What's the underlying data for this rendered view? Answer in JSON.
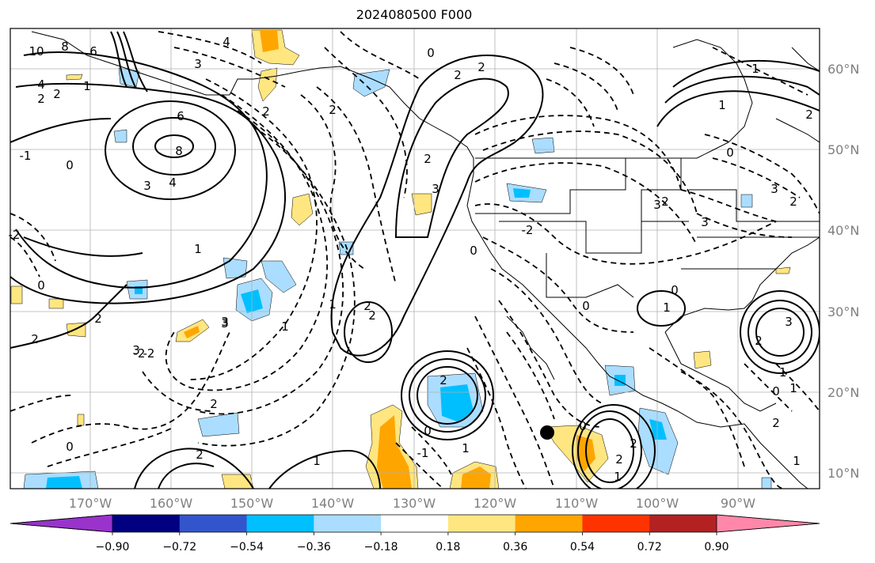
{
  "title": "2024080500 F000",
  "axes": {
    "lon_labels": [
      "170°W",
      "160°W",
      "150°W",
      "140°W",
      "130°W",
      "120°W",
      "110°W",
      "100°W",
      "90°W"
    ],
    "lat_labels": [
      "60°N",
      "50°N",
      "40°N",
      "30°N",
      "20°N",
      "10°N"
    ]
  },
  "colorbar": {
    "tick_labels": [
      "−0.90",
      "−0.72",
      "−0.54",
      "−0.36",
      "−0.18",
      "0.18",
      "0.36",
      "0.54",
      "0.72",
      "0.90"
    ],
    "colors": [
      "#9933cc",
      "#000080",
      "#3355cc",
      "#00bfff",
      "#aaddff",
      "#ffffff",
      "#ffe680",
      "#ffa500",
      "#ff3300",
      "#b22222",
      "#ff88aa"
    ]
  },
  "contour_labels": [
    "10",
    "8",
    "6",
    "4",
    "2",
    "6",
    "8",
    "3",
    "4",
    "1",
    "0",
    "-1",
    "2",
    "1",
    "3",
    "-2",
    "0",
    "2",
    "2",
    "3",
    "2",
    "0",
    "-2",
    "2",
    "4",
    "3",
    "2",
    "3",
    "2",
    "0",
    "2",
    "2",
    "-2",
    "2",
    "0",
    "2",
    "0",
    "1",
    "2",
    "-1",
    "1",
    "0",
    "2",
    "1",
    "2",
    "3",
    "3",
    "2",
    "-1",
    "1",
    "0",
    "0",
    "1",
    "1",
    "2",
    "2",
    "3",
    "3",
    "2",
    "2",
    "0",
    "1",
    "1",
    "3",
    "2",
    "1",
    "-2",
    "1",
    "0"
  ],
  "markers": [
    {
      "name": "storm-center-dot"
    }
  ]
}
